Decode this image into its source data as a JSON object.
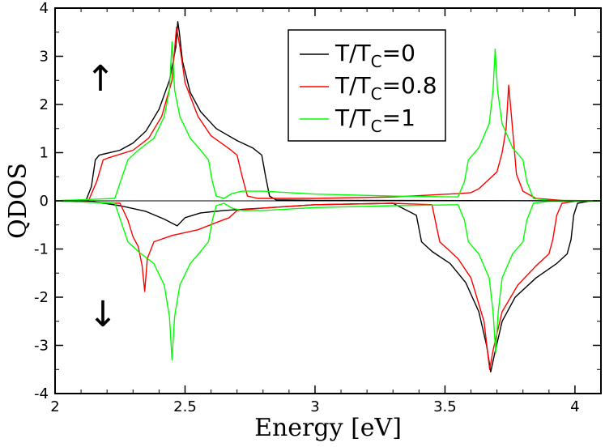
{
  "chart_data": {
    "type": "line",
    "title": "",
    "xlabel": "Energy [eV]",
    "ylabel": "QDOS",
    "xlim": [
      2,
      4.1
    ],
    "ylim": [
      -4,
      4
    ],
    "x_ticks": [
      2,
      2.5,
      3,
      3.5,
      4
    ],
    "x_tick_labels": [
      "2",
      "2.5",
      "3",
      "3.5",
      "4"
    ],
    "y_ticks": [
      -4,
      -3,
      -2,
      -1,
      0,
      1,
      2,
      3,
      4
    ],
    "y_tick_labels": [
      "-4",
      "-3",
      "-2",
      "-1",
      "0",
      "1",
      "2",
      "3",
      "4"
    ],
    "arrow_up_label": "↑",
    "arrow_down_label": "↓",
    "legend": [
      {
        "prefix": "T/T",
        "sub": "C",
        "suffix": "=0",
        "color": "#000000"
      },
      {
        "prefix": "T/T",
        "sub": "C",
        "suffix": "=0.8",
        "color": "#ff0000"
      },
      {
        "prefix": "T/T",
        "sub": "C",
        "suffix": "=1",
        "color": "#00ff00"
      }
    ],
    "series": [
      {
        "name": "T/TC=0 spin up",
        "color": "#000000",
        "points": [
          [
            2.0,
            0
          ],
          [
            2.12,
            0.02
          ],
          [
            2.14,
            0.3
          ],
          [
            2.155,
            0.85
          ],
          [
            2.17,
            0.95
          ],
          [
            2.25,
            1.05
          ],
          [
            2.3,
            1.2
          ],
          [
            2.35,
            1.45
          ],
          [
            2.4,
            1.9
          ],
          [
            2.44,
            2.5
          ],
          [
            2.465,
            3.2
          ],
          [
            2.472,
            3.72
          ],
          [
            2.478,
            3.5
          ],
          [
            2.49,
            2.9
          ],
          [
            2.52,
            2.25
          ],
          [
            2.56,
            1.85
          ],
          [
            2.62,
            1.5
          ],
          [
            2.7,
            1.25
          ],
          [
            2.76,
            1.1
          ],
          [
            2.795,
            0.95
          ],
          [
            2.81,
            0.5
          ],
          [
            2.825,
            0.1
          ],
          [
            2.85,
            0.02
          ],
          [
            3.0,
            0.01
          ],
          [
            4.1,
            0.0
          ]
        ]
      },
      {
        "name": "T/TC=0 spin down",
        "color": "#000000",
        "points": [
          [
            2.0,
            0
          ],
          [
            2.15,
            -0.02
          ],
          [
            2.25,
            -0.1
          ],
          [
            2.35,
            -0.22
          ],
          [
            2.42,
            -0.38
          ],
          [
            2.47,
            -0.52
          ],
          [
            2.5,
            -0.35
          ],
          [
            2.56,
            -0.25
          ],
          [
            2.65,
            -0.2
          ],
          [
            2.8,
            -0.15
          ],
          [
            3.0,
            -0.08
          ],
          [
            3.3,
            -0.05
          ],
          [
            3.39,
            -0.3
          ],
          [
            3.41,
            -0.85
          ],
          [
            3.45,
            -1.05
          ],
          [
            3.52,
            -1.3
          ],
          [
            3.58,
            -1.7
          ],
          [
            3.63,
            -2.3
          ],
          [
            3.66,
            -3.0
          ],
          [
            3.676,
            -3.55
          ],
          [
            3.69,
            -3.2
          ],
          [
            3.72,
            -2.5
          ],
          [
            3.77,
            -2.0
          ],
          [
            3.85,
            -1.6
          ],
          [
            3.93,
            -1.3
          ],
          [
            3.97,
            -1.1
          ],
          [
            3.985,
            -0.8
          ],
          [
            3.995,
            -0.3
          ],
          [
            4.01,
            -0.05
          ],
          [
            4.05,
            -0.01
          ],
          [
            4.1,
            0.0
          ]
        ]
      },
      {
        "name": "T/TC=0.8 spin up",
        "color": "#ff0000",
        "points": [
          [
            2.0,
            0
          ],
          [
            2.13,
            0.02
          ],
          [
            2.16,
            0.4
          ],
          [
            2.185,
            0.85
          ],
          [
            2.21,
            0.9
          ],
          [
            2.3,
            1.05
          ],
          [
            2.36,
            1.3
          ],
          [
            2.41,
            1.75
          ],
          [
            2.45,
            2.5
          ],
          [
            2.467,
            3.6
          ],
          [
            2.48,
            3.2
          ],
          [
            2.5,
            2.45
          ],
          [
            2.55,
            1.75
          ],
          [
            2.6,
            1.35
          ],
          [
            2.67,
            1.08
          ],
          [
            2.7,
            0.95
          ],
          [
            2.72,
            0.5
          ],
          [
            2.74,
            0.1
          ],
          [
            2.78,
            0.05
          ],
          [
            3.0,
            0.05
          ],
          [
            3.3,
            0.08
          ],
          [
            3.55,
            0.15
          ],
          [
            3.6,
            0.17
          ],
          [
            3.63,
            0.25
          ],
          [
            3.7,
            0.6
          ],
          [
            3.72,
            1.0
          ],
          [
            3.735,
            1.5
          ],
          [
            3.745,
            2.4
          ],
          [
            3.755,
            1.8
          ],
          [
            3.775,
            0.55
          ],
          [
            3.8,
            0.2
          ],
          [
            3.85,
            0.05
          ],
          [
            3.95,
            0.01
          ],
          [
            4.1,
            0.0
          ]
        ]
      },
      {
        "name": "T/TC=0.8 spin down",
        "color": "#ff0000",
        "points": [
          [
            2.0,
            0
          ],
          [
            2.25,
            -0.05
          ],
          [
            2.28,
            -0.4
          ],
          [
            2.3,
            -0.75
          ],
          [
            2.32,
            -0.95
          ],
          [
            2.335,
            -1.35
          ],
          [
            2.345,
            -1.88
          ],
          [
            2.355,
            -1.2
          ],
          [
            2.38,
            -0.85
          ],
          [
            2.45,
            -0.72
          ],
          [
            2.55,
            -0.6
          ],
          [
            2.62,
            -0.45
          ],
          [
            2.67,
            -0.35
          ],
          [
            2.7,
            -0.2
          ],
          [
            2.8,
            -0.15
          ],
          [
            3.0,
            -0.08
          ],
          [
            3.3,
            -0.05
          ],
          [
            3.45,
            -0.08
          ],
          [
            3.47,
            -0.6
          ],
          [
            3.48,
            -0.85
          ],
          [
            3.55,
            -1.2
          ],
          [
            3.6,
            -1.6
          ],
          [
            3.65,
            -2.5
          ],
          [
            3.672,
            -3.5
          ],
          [
            3.685,
            -3.1
          ],
          [
            3.72,
            -2.3
          ],
          [
            3.78,
            -1.75
          ],
          [
            3.85,
            -1.35
          ],
          [
            3.9,
            -1.1
          ],
          [
            3.915,
            -0.8
          ],
          [
            3.93,
            -0.3
          ],
          [
            3.95,
            -0.05
          ],
          [
            4.0,
            -0.01
          ],
          [
            4.1,
            0.0
          ]
        ]
      },
      {
        "name": "T/TC=1 spin up",
        "color": "#00ff00",
        "points": [
          [
            2.0,
            0
          ],
          [
            2.23,
            0.05
          ],
          [
            2.255,
            0.45
          ],
          [
            2.28,
            0.85
          ],
          [
            2.32,
            1.05
          ],
          [
            2.38,
            1.3
          ],
          [
            2.42,
            1.75
          ],
          [
            2.44,
            2.3
          ],
          [
            2.45,
            3.3
          ],
          [
            2.46,
            2.3
          ],
          [
            2.48,
            1.75
          ],
          [
            2.52,
            1.3
          ],
          [
            2.56,
            1.05
          ],
          [
            2.59,
            0.85
          ],
          [
            2.605,
            0.4
          ],
          [
            2.62,
            0.1
          ],
          [
            2.65,
            0.05
          ],
          [
            2.68,
            0.15
          ],
          [
            2.72,
            0.2
          ],
          [
            2.8,
            0.2
          ],
          [
            3.0,
            0.14
          ],
          [
            3.3,
            0.1
          ],
          [
            3.55,
            0.08
          ],
          [
            3.575,
            0.4
          ],
          [
            3.59,
            0.85
          ],
          [
            3.63,
            1.1
          ],
          [
            3.67,
            1.6
          ],
          [
            3.685,
            2.3
          ],
          [
            3.693,
            3.15
          ],
          [
            3.702,
            2.3
          ],
          [
            3.72,
            1.6
          ],
          [
            3.76,
            1.1
          ],
          [
            3.8,
            0.85
          ],
          [
            3.815,
            0.4
          ],
          [
            3.84,
            0.05
          ],
          [
            3.9,
            0.01
          ],
          [
            4.1,
            0.0
          ]
        ]
      },
      {
        "name": "T/TC=1 spin down",
        "color": "#00ff00",
        "points": [
          [
            2.0,
            0
          ],
          [
            2.23,
            -0.05
          ],
          [
            2.255,
            -0.45
          ],
          [
            2.28,
            -0.85
          ],
          [
            2.32,
            -1.05
          ],
          [
            2.38,
            -1.3
          ],
          [
            2.42,
            -1.75
          ],
          [
            2.44,
            -2.4
          ],
          [
            2.45,
            -3.3
          ],
          [
            2.46,
            -2.4
          ],
          [
            2.48,
            -1.75
          ],
          [
            2.52,
            -1.3
          ],
          [
            2.56,
            -1.05
          ],
          [
            2.59,
            -0.85
          ],
          [
            2.605,
            -0.4
          ],
          [
            2.62,
            -0.1
          ],
          [
            2.65,
            -0.05
          ],
          [
            2.68,
            -0.15
          ],
          [
            2.72,
            -0.2
          ],
          [
            2.8,
            -0.2
          ],
          [
            3.0,
            -0.14
          ],
          [
            3.3,
            -0.1
          ],
          [
            3.55,
            -0.08
          ],
          [
            3.575,
            -0.4
          ],
          [
            3.59,
            -0.85
          ],
          [
            3.63,
            -1.1
          ],
          [
            3.67,
            -1.6
          ],
          [
            3.685,
            -2.3
          ],
          [
            3.695,
            -3.15
          ],
          [
            3.705,
            -2.3
          ],
          [
            3.72,
            -1.6
          ],
          [
            3.76,
            -1.1
          ],
          [
            3.8,
            -0.85
          ],
          [
            3.815,
            -0.4
          ],
          [
            3.84,
            -0.05
          ],
          [
            3.9,
            -0.01
          ],
          [
            4.1,
            0.0
          ]
        ]
      }
    ]
  }
}
